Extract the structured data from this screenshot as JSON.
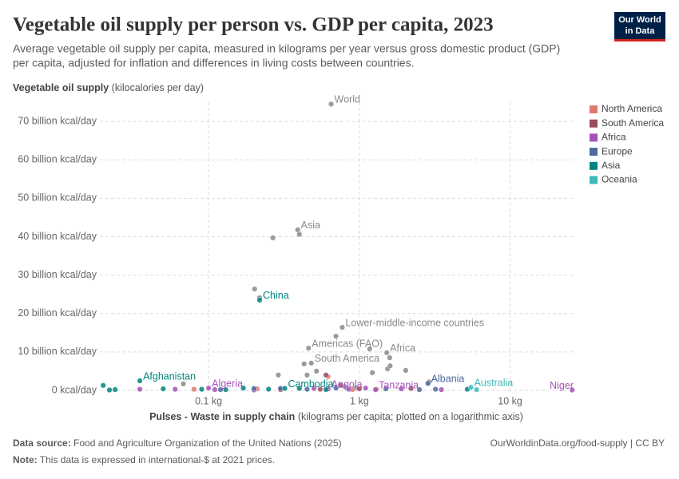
{
  "logo": [
    "Our World",
    "in Data"
  ],
  "chart_data": {
    "type": "scatter",
    "title": "Vegetable oil supply per person vs. GDP per capita, 2023",
    "subtitle_lines": [
      "Average vegetable oil supply per capita, measured in kilograms per year versus gross domestic product (GDP)",
      "per capita, adjusted for inflation and differences in living costs between countries."
    ],
    "y_label": {
      "bold": "Vegetable oil supply",
      "rest": "(kilocalories per day)"
    },
    "x_label": {
      "bold": "Pulses - Waste in supply chain",
      "rest": "(kilograms per capita; plotted on a logarithmic axis)"
    },
    "x_log": true,
    "grid": true,
    "legend_position": "right",
    "xlim": [
      0.019,
      27
    ],
    "xticks": [
      {
        "value": 0.1,
        "label": "0.1 kg"
      },
      {
        "value": 1,
        "label": "1 kg"
      },
      {
        "value": 10,
        "label": "10 kg"
      }
    ],
    "ylim": [
      0,
      75000000000
    ],
    "yticks": [
      {
        "value": 0,
        "label": "0 kcal/day"
      },
      {
        "value": 10000000000,
        "label": "10 billion kcal/day"
      },
      {
        "value": 20000000000,
        "label": "20 billion kcal/day"
      },
      {
        "value": 30000000000,
        "label": "30 billion kcal/day"
      },
      {
        "value": 40000000000,
        "label": "40 billion kcal/day"
      },
      {
        "value": 50000000000,
        "label": "50 billion kcal/day"
      },
      {
        "value": 60000000000,
        "label": "60 billion kcal/day"
      },
      {
        "value": 70000000000,
        "label": "70 billion kcal/day"
      }
    ],
    "series": [
      {
        "color": "#8a8a8a",
        "x": [
          0.65,
          0.39,
          0.4,
          0.267,
          0.202,
          0.218,
          0.77,
          0.7,
          0.46,
          0.48,
          1.52,
          1.17,
          1.59,
          1.54,
          1.6,
          2.03,
          1.22,
          0.43,
          0.52,
          0.45,
          0.29,
          0.068,
          0.8,
          0.95,
          2.9
        ],
        "values": [
          74500000000.0,
          41800000000.0,
          40600000000.0,
          39700000000.0,
          26400000000.0,
          24100000000.0,
          16400000000.0,
          14100000000.0,
          11000000000.0,
          7100000000.0,
          9800000000.0,
          10800000000.0,
          8500000000.0,
          5600000000.0,
          6400000000.0,
          5200000000.0,
          4600000000.0,
          6900000000.0,
          5000000000.0,
          4000000000.0,
          4000000000.0,
          1700000000.0,
          1000000000.0,
          600000000.0,
          2200000000.0
        ],
        "point_labels": [
          "World",
          "Asia",
          null,
          null,
          null,
          null,
          "Lower-middle-income countries",
          null,
          "Americas (FAO)",
          "South America",
          "Africa",
          null,
          null,
          null,
          null,
          null,
          null,
          null,
          null,
          null,
          null,
          null,
          null,
          null,
          null
        ]
      },
      {
        "name": "North America",
        "color": "#e07a6f",
        "x": [
          0.62,
          1.3,
          0.9,
          0.21,
          0.08
        ],
        "values": [
          3600000000.0,
          300000000.0,
          200000000.0,
          400000000.0,
          300000000.0
        ]
      },
      {
        "name": "South America",
        "color": "#9b4d60",
        "x": [
          0.6,
          0.75,
          1.0,
          0.55,
          0.3,
          2.2
        ],
        "values": [
          4000000000.0,
          1300000000.0,
          400000000.0,
          300000000.0,
          200000000.0,
          500000000.0
        ]
      },
      {
        "name": "Africa",
        "color": "#a652ba",
        "x": [
          0.1,
          0.62,
          1.28,
          25.8,
          0.06,
          0.11,
          0.2,
          0.5,
          0.85,
          1.1,
          1.9,
          3.5,
          0.035
        ],
        "values": [
          600000000.0,
          400000000.0,
          200000000.0,
          100000000.0,
          300000000.0,
          200000000.0,
          100000000.0,
          500000000.0,
          300000000.0,
          600000000.0,
          400000000.0,
          200000000.0,
          300000000.0
        ],
        "point_labels": [
          "Algeria",
          "Angola",
          "Tanzania",
          "Niger",
          null,
          null,
          null,
          null,
          null,
          null,
          null,
          null,
          null
        ]
      },
      {
        "name": "Europe",
        "color": "#4c6a9c",
        "x": [
          2.85,
          0.3,
          0.45,
          0.7,
          1.5,
          2.5,
          3.2,
          0.2,
          0.12
        ],
        "values": [
          1800000000.0,
          500000000.0,
          300000000.0,
          600000000.0,
          400000000.0,
          200000000.0,
          300000000.0,
          500000000.0,
          200000000.0
        ],
        "point_labels": [
          "Albania",
          null,
          null,
          null,
          null,
          null,
          null,
          null,
          null
        ]
      },
      {
        "name": "Asia",
        "color": "#00847e",
        "x": [
          0.218,
          0.035,
          0.32,
          0.02,
          0.022,
          0.024,
          0.05,
          0.09,
          0.13,
          0.17,
          0.25,
          0.4,
          0.6,
          5.2
        ],
        "values": [
          23500000000.0,
          2500000000.0,
          500000000.0,
          1300000000.0,
          100000000.0,
          200000000.0,
          400000000.0,
          300000000.0,
          200000000.0,
          600000000.0,
          300000000.0,
          500000000.0,
          200000000.0,
          300000000.0
        ],
        "point_labels": [
          "China",
          "Afghanistan",
          "Cambodia",
          null,
          null,
          null,
          null,
          null,
          null,
          null,
          null,
          null,
          null,
          null
        ]
      },
      {
        "name": "Oceania",
        "color": "#3fb8b8",
        "x": [
          5.5,
          6
        ],
        "values": [
          800000000.0,
          200000000.0
        ],
        "point_labels": [
          "Australia",
          null
        ]
      }
    ],
    "source": {
      "bold": "Data source:",
      "rest": "Food and Agriculture Organization of the United Nations (2025)"
    },
    "url": "OurWorldinData.org/food-supply | CC BY",
    "note": {
      "bold": "Note:",
      "rest": "This data is expressed in international-$ at 2021 prices."
    }
  }
}
